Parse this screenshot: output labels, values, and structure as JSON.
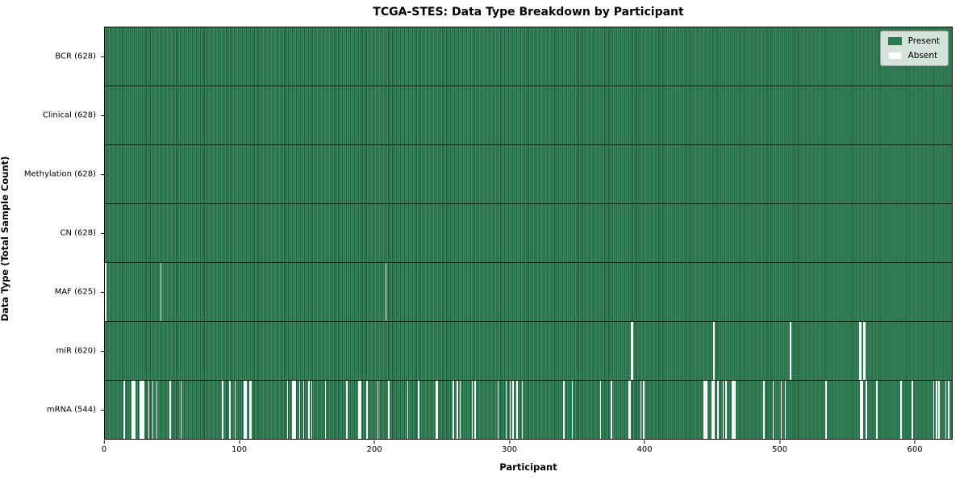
{
  "title": "TCGA-STES: Data Type Breakdown by Participant",
  "xlabel": "Participant",
  "ylabel": "Data Type (Total Sample Count)",
  "legend": {
    "present_label": "Present",
    "absent_label": "Absent"
  },
  "colors": {
    "present_green": "#2e7a50",
    "present_green_light": "#3c8a61",
    "present_green_dark": "#1e5e3d",
    "absent_white": "#fafafa",
    "legend_background": "#ececec",
    "axis_black": "#000000"
  },
  "chart_data": {
    "type": "heatmap",
    "title": "TCGA-STES: Data Type Breakdown by Participant",
    "xlabel": "Participant",
    "ylabel": "Data Type (Total Sample Count)",
    "legend": [
      "Present",
      "Absent"
    ],
    "legend_position": "upper right",
    "grid": "row separators only",
    "x_range": [
      0,
      628
    ],
    "x_ticks": [
      0,
      100,
      200,
      300,
      400,
      500,
      600
    ],
    "total_participants": 628,
    "rows": [
      {
        "data_type": "BCR",
        "label": "BCR (628)",
        "present_count": 628,
        "absent_count": 0,
        "absent_indices": []
      },
      {
        "data_type": "Clinical",
        "label": "Clinical (628)",
        "present_count": 628,
        "absent_count": 0,
        "absent_indices": []
      },
      {
        "data_type": "Methylation",
        "label": "Methylation (628)",
        "present_count": 628,
        "absent_count": 0,
        "absent_indices": []
      },
      {
        "data_type": "CN",
        "label": "CN (628)",
        "present_count": 628,
        "absent_count": 0,
        "absent_indices": []
      },
      {
        "data_type": "MAF",
        "label": "MAF (625)",
        "present_count": 625,
        "absent_count": 3,
        "absent_indices": [
          0,
          41,
          208
        ]
      },
      {
        "data_type": "miR",
        "label": "miR (620)",
        "present_count": 620,
        "absent_count": 8,
        "absent_indices": [
          390,
          391,
          451,
          508,
          559,
          560,
          562,
          563
        ]
      },
      {
        "data_type": "mRNA",
        "label": "mRNA (544)",
        "present_count": 544,
        "absent_count": 84,
        "absent_indices": [
          14,
          20,
          21,
          22,
          26,
          27,
          28,
          32,
          35,
          38,
          48,
          56,
          87,
          92,
          96,
          103,
          104,
          107,
          108,
          135,
          139,
          140,
          141,
          144,
          147,
          151,
          153,
          163,
          179,
          188,
          189,
          194,
          202,
          210,
          224,
          232,
          245,
          246,
          258,
          261,
          263,
          272,
          274,
          291,
          297,
          300,
          302,
          305,
          309,
          340,
          346,
          367,
          375,
          388,
          389,
          397,
          399,
          444,
          445,
          446,
          450,
          451,
          454,
          458,
          460,
          465,
          466,
          467,
          488,
          495,
          501,
          504,
          534,
          560,
          561,
          564,
          572,
          590,
          598,
          614,
          616,
          618,
          623,
          625
        ]
      }
    ]
  }
}
